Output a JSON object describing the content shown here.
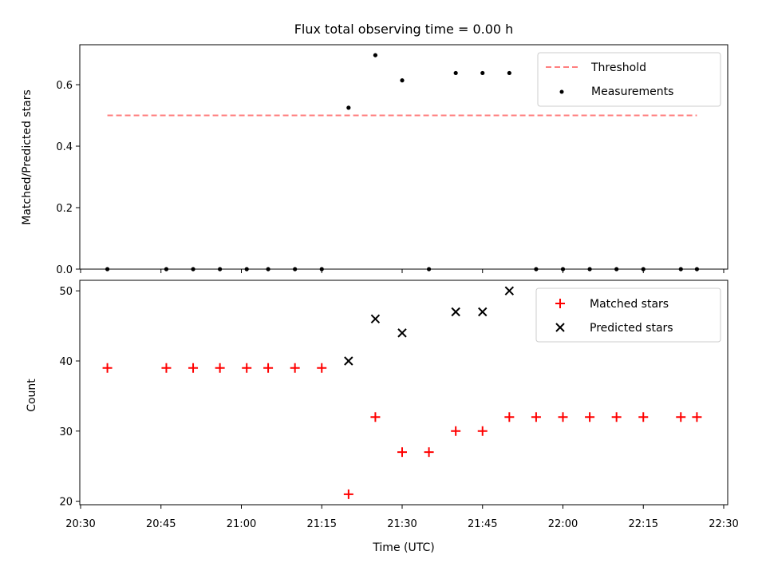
{
  "title": "Flux total observing time = 0.00 h",
  "colors": {
    "threshold": "#ff7f7f",
    "measurement": "#000000",
    "matched": "#ff0000",
    "predicted": "#000000"
  },
  "chart_data": [
    {
      "type": "scatter",
      "ylabel": "Matched/Predicted stars",
      "ylim": [
        0,
        0.73
      ],
      "yticks": [
        "0.0",
        "0.2",
        "0.4",
        "0.6"
      ],
      "grid": false,
      "legend_position": "top-right",
      "legend": [
        "Threshold",
        "Measurements"
      ],
      "threshold": {
        "name": "Threshold",
        "value": 0.5,
        "x_range": [
          "20:35",
          "22:25"
        ]
      },
      "series": [
        {
          "name": "Measurements",
          "x": [
            "20:35",
            "20:46",
            "20:51",
            "20:56",
            "21:01",
            "21:05",
            "21:10",
            "21:15",
            "21:20",
            "21:25",
            "21:30",
            "21:35",
            "21:40",
            "21:45",
            "21:50",
            "21:55",
            "22:00",
            "22:05",
            "22:10",
            "22:15",
            "22:22",
            "22:25"
          ],
          "y": [
            0,
            0,
            0,
            0,
            0,
            0,
            0,
            0,
            0.525,
            0.696,
            0.614,
            0,
            0.638,
            0.638,
            0.638,
            0,
            0,
            0,
            0,
            0,
            0,
            0
          ]
        }
      ]
    },
    {
      "type": "scatter",
      "ylabel": "Count",
      "xlabel": "Time (UTC)",
      "ylim": [
        19.5,
        51.5
      ],
      "yticks": [
        "20",
        "30",
        "40",
        "50"
      ],
      "xticks": [
        "20:30",
        "20:45",
        "21:00",
        "21:15",
        "21:30",
        "21:45",
        "22:00",
        "22:15",
        "22:30"
      ],
      "grid": false,
      "legend_position": "top-right",
      "legend": [
        "Matched stars",
        "Predicted stars"
      ],
      "series": [
        {
          "name": "Matched stars",
          "x": [
            "20:35",
            "20:46",
            "20:51",
            "20:56",
            "21:01",
            "21:05",
            "21:10",
            "21:15",
            "21:20",
            "21:25",
            "21:30",
            "21:35",
            "21:40",
            "21:45",
            "21:50",
            "21:55",
            "22:00",
            "22:05",
            "22:10",
            "22:15",
            "22:22",
            "22:25"
          ],
          "y": [
            39,
            39,
            39,
            39,
            39,
            39,
            39,
            39,
            21,
            32,
            27,
            27,
            30,
            30,
            32,
            32,
            32,
            32,
            32,
            32,
            32,
            32
          ]
        },
        {
          "name": "Predicted stars",
          "x": [
            "21:20",
            "21:25",
            "21:30",
            "21:40",
            "21:45",
            "21:50"
          ],
          "y": [
            40,
            46,
            44,
            47,
            47,
            50
          ]
        }
      ]
    }
  ]
}
